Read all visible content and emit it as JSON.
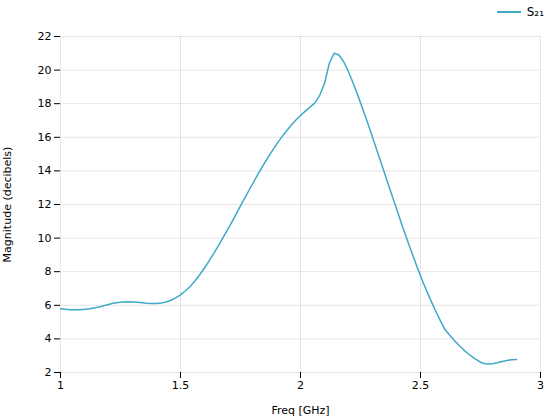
{
  "chart_data": {
    "type": "line",
    "xlabel": "Freq [GHz]",
    "ylabel": "Magnitude (decibels)",
    "xlim": [
      1,
      3
    ],
    "ylim": [
      2,
      22
    ],
    "xticks": [
      1,
      1.5,
      2,
      2.5,
      3
    ],
    "yticks": [
      2,
      4,
      6,
      8,
      10,
      12,
      14,
      16,
      18,
      20,
      22
    ],
    "grid": true,
    "legend": "upper right",
    "x": [
      1.0,
      1.02,
      1.04,
      1.06,
      1.08,
      1.1,
      1.12,
      1.14,
      1.16,
      1.18,
      1.2,
      1.22,
      1.24,
      1.26,
      1.28,
      1.3,
      1.32,
      1.34,
      1.36,
      1.38,
      1.4,
      1.42,
      1.44,
      1.46,
      1.48,
      1.5,
      1.52,
      1.54,
      1.56,
      1.58,
      1.6,
      1.62,
      1.64,
      1.66,
      1.68,
      1.7,
      1.72,
      1.74,
      1.76,
      1.78,
      1.8,
      1.82,
      1.84,
      1.86,
      1.88,
      1.9,
      1.92,
      1.94,
      1.96,
      1.98,
      2.0,
      2.02,
      2.04,
      2.06,
      2.08,
      2.1,
      2.12,
      2.14,
      2.16,
      2.18,
      2.2,
      2.22,
      2.24,
      2.26,
      2.28,
      2.3,
      2.32,
      2.34,
      2.36,
      2.38,
      2.4,
      2.42,
      2.44,
      2.46,
      2.48,
      2.5,
      2.52,
      2.54,
      2.56,
      2.58,
      2.6,
      2.62,
      2.64,
      2.66,
      2.68,
      2.7,
      2.72,
      2.74,
      2.76,
      2.78,
      2.8,
      2.82,
      2.84,
      2.86,
      2.88,
      2.9
    ],
    "series": [
      {
        "name": "S₂₁",
        "color": "#3FA9C8",
        "values": [
          5.8,
          5.76,
          5.74,
          5.73,
          5.74,
          5.76,
          5.79,
          5.84,
          5.9,
          5.97,
          6.05,
          6.12,
          6.17,
          6.2,
          6.21,
          6.2,
          6.18,
          6.15,
          6.12,
          6.1,
          6.1,
          6.13,
          6.2,
          6.3,
          6.44,
          6.62,
          6.85,
          7.12,
          7.45,
          7.82,
          8.22,
          8.66,
          9.12,
          9.6,
          10.1,
          10.6,
          11.12,
          11.65,
          12.18,
          12.7,
          13.22,
          13.73,
          14.22,
          14.7,
          15.15,
          15.58,
          15.98,
          16.35,
          16.7,
          17.02,
          17.3,
          17.56,
          17.8,
          18.05,
          18.5,
          19.2,
          20.4,
          21.0,
          20.9,
          20.5,
          19.9,
          19.2,
          18.45,
          17.65,
          16.85,
          16.0,
          15.15,
          14.3,
          13.45,
          12.6,
          11.75,
          10.9,
          10.08,
          9.28,
          8.5,
          7.75,
          7.05,
          6.38,
          5.75,
          5.16,
          4.6,
          4.25,
          3.92,
          3.62,
          3.35,
          3.1,
          2.88,
          2.7,
          2.55,
          2.5,
          2.52,
          2.58,
          2.65,
          2.72,
          2.76,
          2.78
        ]
      }
    ]
  }
}
